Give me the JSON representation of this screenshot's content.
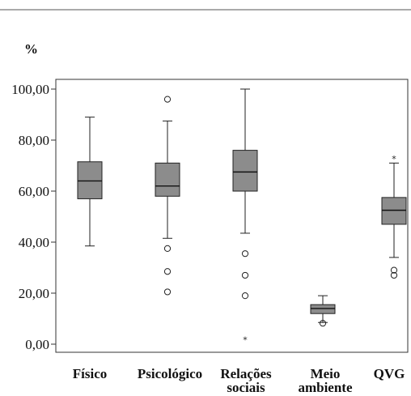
{
  "chart_data": {
    "type": "boxplot",
    "ylabel": "%",
    "ylim": [
      0,
      100
    ],
    "y_ticks": [
      "0,00",
      "20,00",
      "40,00",
      "60,00",
      "80,00",
      "100,00"
    ],
    "y_tick_values": [
      0,
      20,
      40,
      60,
      80,
      100
    ],
    "grid": false,
    "box_color": "#8c8c8c",
    "categories": [
      {
        "label_lines": [
          "Físico"
        ],
        "stats": {
          "min": 38.5,
          "q1": 57,
          "median": 64,
          "q3": 71.5,
          "max": 89
        },
        "outliers": [],
        "extremes": []
      },
      {
        "label_lines": [
          "Psicológico"
        ],
        "stats": {
          "min": 41.5,
          "q1": 58,
          "median": 62,
          "q3": 71,
          "max": 87.5
        },
        "outliers": [
          96,
          37.5,
          28.5,
          20.5
        ],
        "extremes": []
      },
      {
        "label_lines": [
          "Relações",
          "sociais"
        ],
        "stats": {
          "min": 43.5,
          "q1": 60,
          "median": 67.5,
          "q3": 76,
          "max": 100
        },
        "outliers": [
          35.5,
          27,
          19
        ],
        "extremes": [
          2
        ]
      },
      {
        "label_lines": [
          "Meio",
          "ambiente"
        ],
        "stats": {
          "min": 8.5,
          "q1": 12,
          "median": 14,
          "q3": 15.5,
          "max": 19
        },
        "outliers": [
          8.2
        ],
        "extremes": []
      },
      {
        "label_lines": [
          "QVG"
        ],
        "stats": {
          "min": 34,
          "q1": 47,
          "median": 52.5,
          "q3": 57.5,
          "max": 71
        },
        "outliers": [
          29,
          27
        ],
        "extremes": [
          73
        ]
      }
    ]
  }
}
